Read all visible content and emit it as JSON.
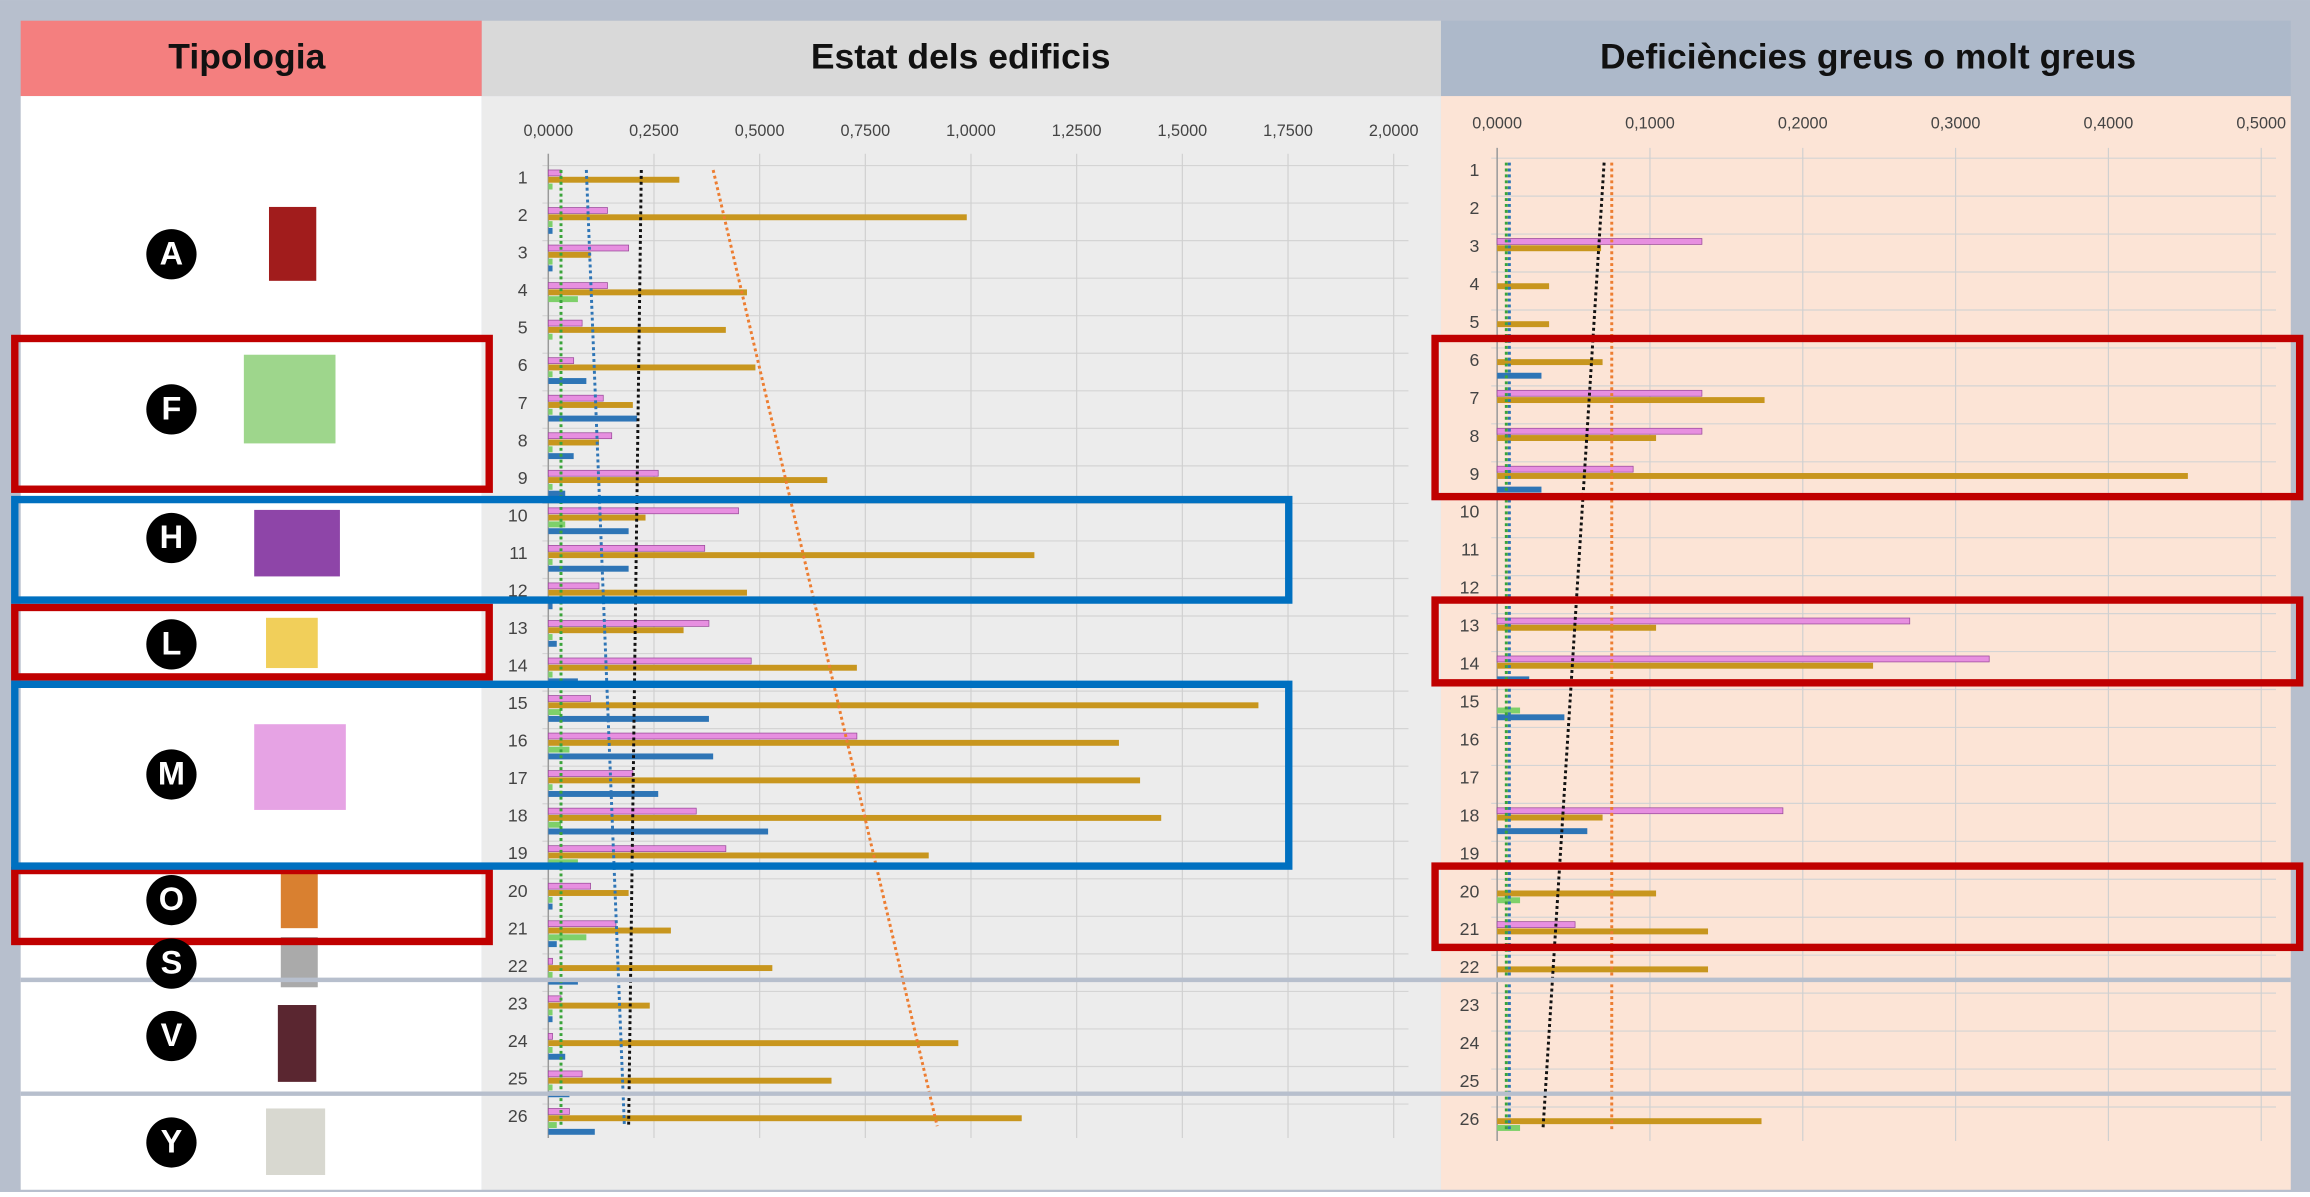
{
  "typology_header": "Tipologia",
  "typologies": [
    "A",
    "F",
    "H",
    "L",
    "M",
    "O",
    "S",
    "V",
    "Y"
  ],
  "chart_data": [
    {
      "type": "bar",
      "title": "Estat dels edificis",
      "categories": [
        "1",
        "2",
        "3",
        "4",
        "5",
        "6",
        "7",
        "8",
        "9",
        "10",
        "11",
        "12",
        "13",
        "14",
        "15",
        "16",
        "17",
        "18",
        "19",
        "20",
        "21",
        "22",
        "23",
        "24",
        "25",
        "26"
      ],
      "series": [
        {
          "color": "#e78fe0",
          "values": [
            0.03,
            0.14,
            0.19,
            0.14,
            0.08,
            0.06,
            0.13,
            0.15,
            0.26,
            0.45,
            0.37,
            0.12,
            0.38,
            0.48,
            0.1,
            0.73,
            0.2,
            0.35,
            0.42,
            0.1,
            0.16,
            0.01,
            0.03,
            0.01,
            0.08,
            0.05
          ]
        },
        {
          "color": "#c8961e",
          "values": [
            0.31,
            0.99,
            0.1,
            0.47,
            0.42,
            0.49,
            0.2,
            0.12,
            0.66,
            0.23,
            1.15,
            0.47,
            0.32,
            0.73,
            1.68,
            1.35,
            1.4,
            1.45,
            0.9,
            0.19,
            0.29,
            0.53,
            0.24,
            0.97,
            0.67,
            1.12
          ]
        },
        {
          "color": "#7ed06a",
          "values": [
            0.01,
            0.01,
            0.01,
            0.07,
            0.01,
            0.01,
            0.01,
            0.01,
            0.01,
            0.04,
            0.01,
            0.01,
            0.01,
            0.01,
            0.03,
            0.05,
            0.01,
            0.03,
            0.07,
            0.01,
            0.09,
            0.01,
            0.01,
            0.01,
            0.01,
            0.02
          ]
        },
        {
          "color": "#2e75b6",
          "values": [
            0,
            0.01,
            0.01,
            0,
            0,
            0.09,
            0.21,
            0.06,
            0.04,
            0.19,
            0.19,
            0.01,
            0.02,
            0.07,
            0.38,
            0.39,
            0.26,
            0.52,
            0,
            0.01,
            0.02,
            0.07,
            0.01,
            0.04,
            0.05,
            0.11
          ]
        }
      ],
      "trend_lines": [
        {
          "color": "#3aa43a",
          "values": [
            0.03,
            0.03
          ]
        },
        {
          "color": "#2e75b6",
          "values": [
            0.09,
            0.18
          ]
        },
        {
          "color": "#111111",
          "values": [
            0.22,
            0.19
          ]
        },
        {
          "color": "#ed7d31",
          "values": [
            0.39,
            0.92
          ]
        }
      ],
      "xlim": [
        0,
        2
      ],
      "xticks": [
        {
          "value": 0,
          "label": "0,0000"
        },
        {
          "value": 0.25,
          "label": "0,2500"
        },
        {
          "value": 0.5,
          "label": "0,5000"
        },
        {
          "value": 0.75,
          "label": "0,7500"
        },
        {
          "value": 1,
          "label": "1,0000"
        },
        {
          "value": 1.25,
          "label": "1,2500"
        },
        {
          "value": 1.5,
          "label": "1,5000"
        },
        {
          "value": 1.75,
          "label": "1,7500"
        },
        {
          "value": 2,
          "label": "2,0000"
        }
      ],
      "grid": true
    },
    {
      "type": "bar",
      "title": "Deficiències greus o molt greus",
      "categories": [
        "1",
        "2",
        "3",
        "4",
        "5",
        "6",
        "7",
        "8",
        "9",
        "10",
        "11",
        "12",
        "13",
        "14",
        "15",
        "16",
        "17",
        "18",
        "19",
        "20",
        "21",
        "22",
        "23",
        "24",
        "25",
        "26"
      ],
      "series": [
        {
          "color": "#e78fe0",
          "values": [
            0,
            0,
            0.134,
            0,
            0,
            0,
            0.134,
            0.134,
            0.089,
            0,
            0,
            0,
            0.27,
            0.322,
            0,
            0,
            0,
            0.187,
            0,
            0,
            0.051,
            0,
            0,
            0,
            0,
            0
          ]
        },
        {
          "color": "#c8961e",
          "values": [
            0,
            0,
            0.068,
            0.034,
            0.034,
            0.069,
            0.175,
            0.104,
            0.452,
            0,
            0,
            0,
            0.104,
            0.246,
            0,
            0,
            0,
            0.069,
            0,
            0.104,
            0.138,
            0.138,
            0,
            0,
            0,
            0.173
          ]
        },
        {
          "color": "#7ed06a",
          "values": [
            0,
            0,
            0,
            0,
            0,
            0,
            0,
            0,
            0,
            0,
            0,
            0,
            0,
            0,
            0.015,
            0,
            0,
            0,
            0,
            0.015,
            0,
            0,
            0,
            0,
            0,
            0.015
          ]
        },
        {
          "color": "#2e75b6",
          "values": [
            0,
            0,
            0,
            0,
            0,
            0.029,
            0,
            0,
            0.029,
            0,
            0,
            0,
            0,
            0.021,
            0.044,
            0,
            0,
            0.059,
            0,
            0,
            0,
            0,
            0,
            0,
            0,
            0
          ]
        }
      ],
      "trend_lines": [
        {
          "color": "#3aa43a",
          "values": [
            0.006,
            0.006
          ]
        },
        {
          "color": "#2e75b6",
          "values": [
            0.008,
            0.008
          ]
        },
        {
          "color": "#111111",
          "values": [
            0.07,
            0.03
          ]
        },
        {
          "color": "#ed7d31",
          "values": [
            0.075,
            0.075
          ]
        }
      ],
      "xlim": [
        0,
        0.5
      ],
      "xticks": [
        {
          "value": 0,
          "label": "0,0000"
        },
        {
          "value": 0.1,
          "label": "0,1000"
        },
        {
          "value": 0.2,
          "label": "0,2000"
        },
        {
          "value": 0.3,
          "label": "0,3000"
        },
        {
          "value": 0.4,
          "label": "0,4000"
        },
        {
          "value": 0.5,
          "label": "0,5000"
        }
      ],
      "grid": true
    }
  ]
}
